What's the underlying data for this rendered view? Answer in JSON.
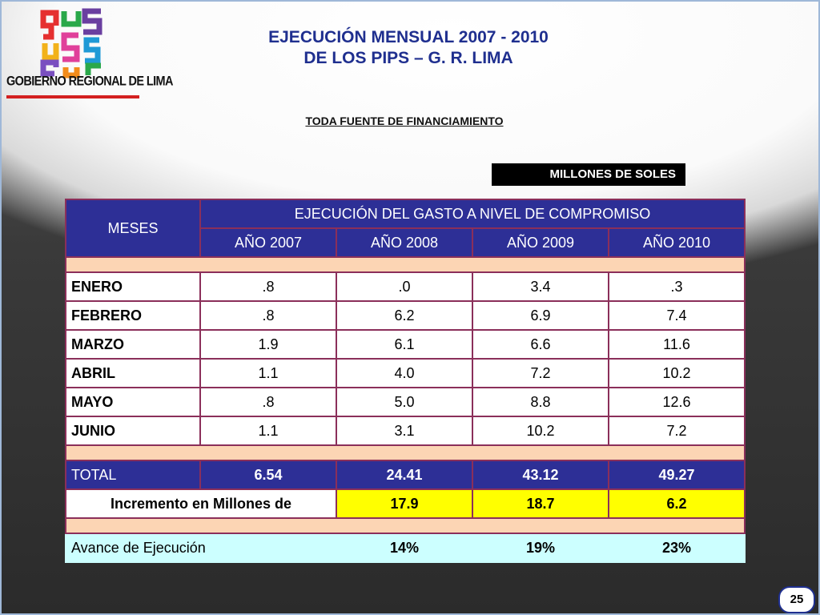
{
  "logo": {
    "text": "GOBIERNO REGIONAL DE LIMA"
  },
  "title": {
    "line1": "EJECUCIÓN MENSUAL 2007 - 2010",
    "line2": "DE LOS PIPS – G. R. LIMA"
  },
  "subtitle": "TODA FUENTE DE FINANCIAMIENTO",
  "units": "MILLONES DE SOLES",
  "table": {
    "meses_header": "MESES",
    "group_header": "EJECUCIÓN DEL GASTO A NIVEL DE COMPROMISO",
    "years": [
      "AÑO 2007",
      "AÑO 2008",
      "AÑO 2009",
      "AÑO 2010"
    ],
    "rows": [
      {
        "mes": "ENERO",
        "values": [
          ".8",
          ".0",
          "3.4",
          ".3"
        ]
      },
      {
        "mes": "FEBRERO",
        "values": [
          ".8",
          "6.2",
          "6.9",
          "7.4"
        ]
      },
      {
        "mes": "MARZO",
        "values": [
          "1.9",
          "6.1",
          "6.6",
          "11.6"
        ]
      },
      {
        "mes": "ABRIL",
        "values": [
          "1.1",
          "4.0",
          "7.2",
          "10.2"
        ]
      },
      {
        "mes": "MAYO",
        "values": [
          ".8",
          "5.0",
          "8.8",
          "12.6"
        ]
      },
      {
        "mes": "JUNIO",
        "values": [
          "1.1",
          "3.1",
          "10.2",
          "7.2"
        ]
      }
    ],
    "total": {
      "label": "TOTAL",
      "values": [
        "6.54",
        "24.41",
        "43.12",
        "49.27"
      ]
    },
    "incremento": {
      "label": "Incremento en Millones de",
      "values": [
        "17.9",
        "18.7",
        "6.2"
      ]
    },
    "avance": {
      "label": "Avance de Ejecución",
      "values": [
        "14%",
        "19%",
        "23%"
      ]
    }
  },
  "page_number": "25",
  "colors": {
    "header_blue": "#2d2f96",
    "spacer_peach": "#fcd5b4",
    "highlight_yellow": "#ffff00",
    "avance_cyan": "#ccffff",
    "title_blue": "#1f2f8f"
  }
}
